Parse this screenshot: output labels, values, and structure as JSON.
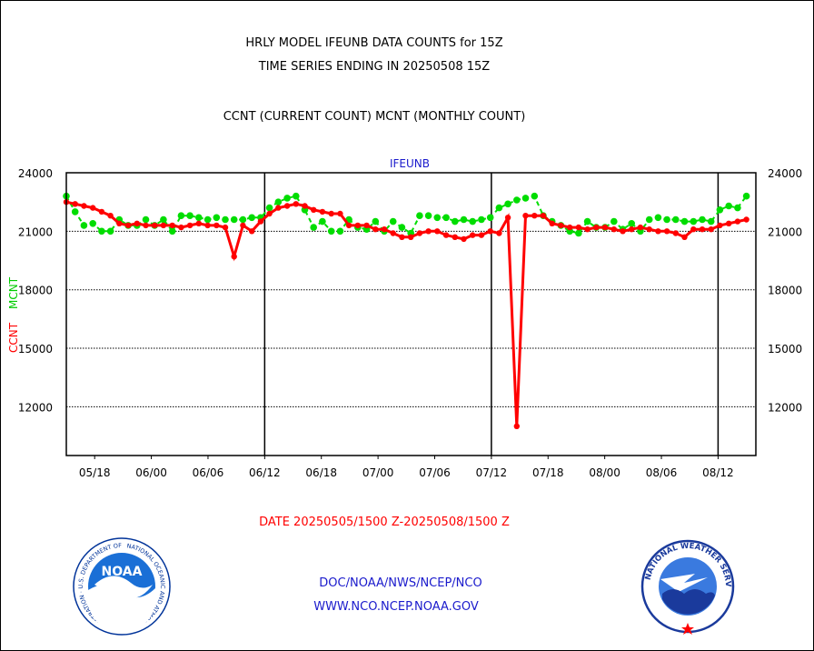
{
  "title_lines": [
    "HRLY MODEL IFEUNB DATA COUNTS for 15Z",
    "TIME SERIES ENDING IN 20250508 15Z",
    "CCNT (CURRENT COUNT) MCNT (MONTHLY COUNT)"
  ],
  "footer": {
    "date_range": "DATE 20250505/1500 Z-20250508/1500 Z",
    "org": "DOC/NOAA/NWS/NCEP/NCO",
    "url": "WWW.NCO.NCEP.NOAA.GOV"
  },
  "logos": {
    "left": "noaa-logo",
    "right": "national-weather-service-logo",
    "left_text": "NATIONAL OCEANIC AND ATMOSPHERIC ADMINISTRATION · U.S. DEPARTMENT OF COMMERCE",
    "right_text": "NATIONAL WEATHER SERVICE"
  },
  "colors": {
    "ccnt": "#ff0000",
    "mcnt": "#00dd00",
    "text_blue": "#1a1acc"
  },
  "chart_data": {
    "type": "line",
    "plot_label": "IFEUNB",
    "ylabel_ccnt": "CCNT",
    "ylabel_mcnt": "MCNT",
    "ylim": [
      9500,
      24000
    ],
    "y_ticks": [
      "12000",
      "15000",
      "18000",
      "21000",
      "24000"
    ],
    "x_ticks": [
      "05/18",
      "06/00",
      "06/06",
      "06/12",
      "06/18",
      "07/00",
      "07/06",
      "07/12",
      "07/18",
      "08/00",
      "08/06",
      "08/12"
    ],
    "x_tick_hours": [
      3,
      9,
      15,
      21,
      27,
      33,
      39,
      45,
      51,
      57,
      63,
      69
    ],
    "day_boundary_hours": [
      21,
      45,
      69
    ],
    "grid": "horizontal-dotted",
    "series": [
      {
        "name": "CCNT",
        "color": "#ff0000",
        "values": [
          22500,
          22400,
          22300,
          22200,
          22000,
          21800,
          21400,
          21300,
          21400,
          21300,
          21300,
          21300,
          21300,
          21200,
          21300,
          21400,
          21300,
          21300,
          21200,
          19700,
          21300,
          21000,
          21500,
          21900,
          22200,
          22300,
          22400,
          22300,
          22100,
          22000,
          21900,
          21900,
          21300,
          21300,
          21300,
          21100,
          21100,
          20900,
          20700,
          20700,
          20900,
          21000,
          21000,
          20800,
          20700,
          20600,
          20800,
          20800,
          21000,
          20900,
          21700,
          11000,
          21800,
          21800,
          21800,
          21400,
          21300,
          21200,
          21200,
          21100,
          21200,
          21200,
          21100,
          21000,
          21100,
          21200,
          21100,
          21000,
          21000,
          20900,
          20700,
          21100,
          21100,
          21100,
          21300,
          21400,
          21500,
          21600
        ]
      },
      {
        "name": "MCNT",
        "color": "#00dd00",
        "values": [
          22800,
          22000,
          21300,
          21400,
          21000,
          21000,
          21600,
          21300,
          21300,
          21600,
          21300,
          21600,
          21000,
          21800,
          21800,
          21700,
          21600,
          21700,
          21600,
          21600,
          21600,
          21700,
          21700,
          22200,
          22500,
          22700,
          22800,
          22100,
          21200,
          21500,
          21000,
          21000,
          21600,
          21200,
          21100,
          21500,
          21000,
          21500,
          21200,
          20900,
          21800,
          21800,
          21700,
          21700,
          21500,
          21600,
          21500,
          21600,
          21700,
          22200,
          22400,
          22600,
          22700,
          22800,
          21800,
          21500,
          21300,
          21000,
          20900,
          21500,
          21200,
          21200,
          21500,
          21100,
          21400,
          21000,
          21600,
          21700,
          21600,
          21600,
          21500,
          21500,
          21600,
          21500,
          22100,
          22300,
          22200,
          22800
        ]
      }
    ]
  }
}
